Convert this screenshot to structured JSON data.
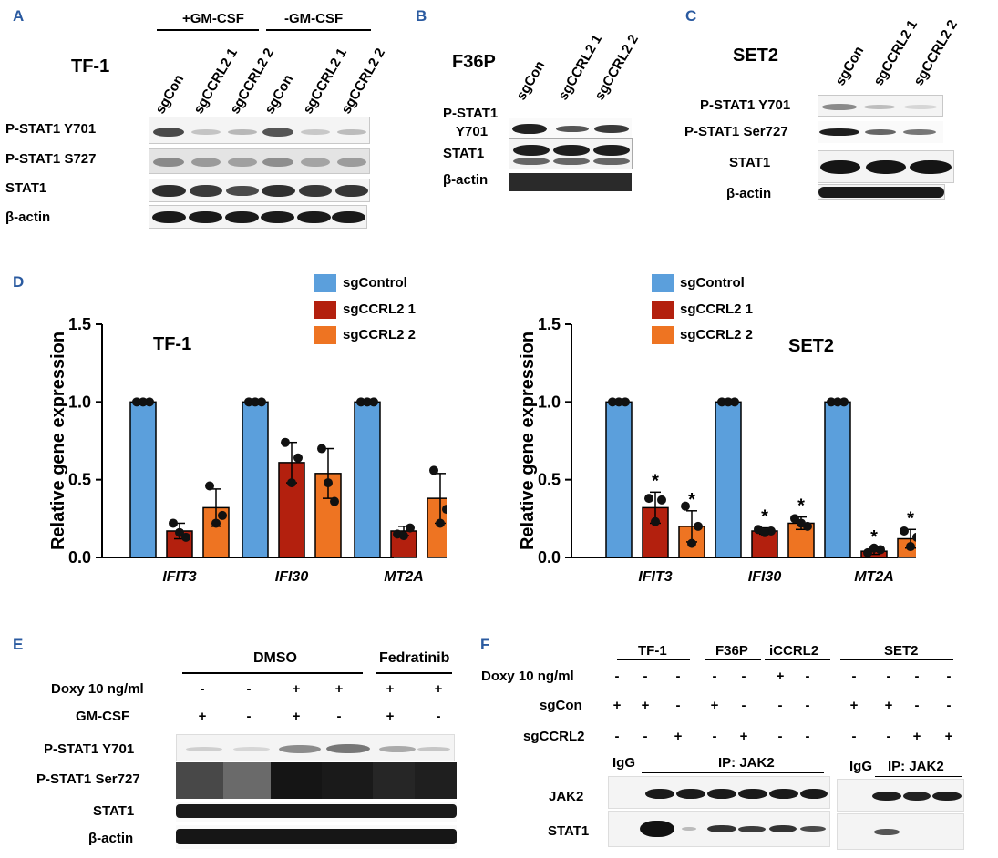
{
  "panelA": {
    "letter": "A",
    "cell_line": "TF-1",
    "cond_plus": "+GM-CSF",
    "cond_minus": "-GM-CSF",
    "lanes": [
      "sgCon",
      "sgCCRL2 1",
      "sgCCRL2 2",
      "sgCon",
      "sgCCRL2 1",
      "sgCCRL2 2"
    ],
    "rows": [
      "P-STAT1 Y701",
      "P-STAT1 S727",
      "STAT1",
      "β-actin"
    ]
  },
  "panelB": {
    "letter": "B",
    "cell_line": "F36P",
    "lanes": [
      "sgCon",
      "sgCCRL2 1",
      "sgCCRL2 2"
    ],
    "row_pstat_line1": "P-STAT1",
    "row_pstat_line2": "Y701",
    "row_stat1": "STAT1",
    "row_actin": "β-actin"
  },
  "panelC": {
    "letter": "C",
    "cell_line": "SET2",
    "lanes": [
      "sgCon",
      "sgCCRL2 1",
      "sgCCRL2 2"
    ],
    "rows": [
      "P-STAT1 Y701",
      "P-STAT1 Ser727",
      "STAT1",
      "β-actin"
    ]
  },
  "panelD": {
    "letter": "D",
    "legend": [
      "sgControl",
      "sgCCRL2 1",
      "sgCCRL2 2"
    ]
  },
  "colors": {
    "sgControl": "#5b9fdc",
    "sgCCRL2_1": "#b3200e",
    "sgCCRL2_2": "#ee7422",
    "panel_letter": "#2a5aa0"
  },
  "chart_data": [
    {
      "type": "bar",
      "title": "TF-1",
      "ylabel": "Relative gene expression",
      "ylim": [
        0,
        1.5
      ],
      "yticks": [
        "0.0",
        "0.5",
        "1.0",
        "1.5"
      ],
      "categories": [
        "IFIT3",
        "IFI30",
        "MT2A"
      ],
      "series": [
        {
          "name": "sgControl",
          "values": [
            1.0,
            1.0,
            1.0
          ],
          "err": [
            0,
            0,
            0
          ],
          "points": [
            [
              1.0,
              1.0,
              1.0
            ],
            [
              1.0,
              1.0,
              1.0
            ],
            [
              1.0,
              1.0,
              1.0
            ]
          ],
          "sig": [
            false,
            false,
            false
          ]
        },
        {
          "name": "sgCCRL2 1",
          "values": [
            0.17,
            0.61,
            0.17
          ],
          "err": [
            0.05,
            0.13,
            0.03
          ],
          "points": [
            [
              0.22,
              0.13,
              0.16
            ],
            [
              0.74,
              0.64,
              0.48
            ],
            [
              0.15,
              0.19,
              0.14
            ]
          ],
          "sig": [
            false,
            false,
            false
          ]
        },
        {
          "name": "sgCCRL2 2",
          "values": [
            0.32,
            0.54,
            0.38
          ],
          "err": [
            0.12,
            0.16,
            0.16
          ],
          "points": [
            [
              0.46,
              0.27,
              0.22
            ],
            [
              0.7,
              0.36,
              0.48
            ],
            [
              0.56,
              0.31,
              0.22
            ]
          ],
          "sig": [
            false,
            false,
            false
          ]
        }
      ]
    },
    {
      "type": "bar",
      "title": "SET2",
      "ylabel": "Relative gene expression",
      "ylim": [
        0,
        1.5
      ],
      "yticks": [
        "0.0",
        "0.5",
        "1.0",
        "1.5"
      ],
      "categories": [
        "IFIT3",
        "IFI30",
        "MT2A"
      ],
      "series": [
        {
          "name": "sgControl",
          "values": [
            1.0,
            1.0,
            1.0
          ],
          "err": [
            0,
            0,
            0
          ],
          "points": [
            [
              1.0,
              1.0,
              1.0
            ],
            [
              1.0,
              1.0,
              1.0
            ],
            [
              1.0,
              1.0,
              1.0
            ]
          ],
          "sig": [
            false,
            false,
            false
          ]
        },
        {
          "name": "sgCCRL2 1",
          "values": [
            0.32,
            0.17,
            0.04
          ],
          "err": [
            0.1,
            0.02,
            0.02
          ],
          "points": [
            [
              0.38,
              0.37,
              0.23
            ],
            [
              0.18,
              0.17,
              0.16
            ],
            [
              0.03,
              0.05,
              0.06
            ]
          ],
          "sig": [
            true,
            true,
            true
          ]
        },
        {
          "name": "sgCCRL2 2",
          "values": [
            0.2,
            0.22,
            0.12
          ],
          "err": [
            0.1,
            0.04,
            0.06
          ],
          "points": [
            [
              0.33,
              0.2,
              0.09
            ],
            [
              0.25,
              0.2,
              0.22
            ],
            [
              0.17,
              0.13,
              0.07
            ]
          ],
          "sig": [
            true,
            true,
            true
          ]
        }
      ]
    }
  ],
  "panelE": {
    "letter": "E",
    "cond_dmso": "DMSO",
    "cond_fed": "Fedratinib",
    "doxy_label": "Doxy 10 ng/ml",
    "gm_label": "GM-CSF",
    "doxy_signs": [
      "-",
      "-",
      "+",
      "+",
      "+",
      "+"
    ],
    "gm_signs": [
      "+",
      "-",
      "+",
      "-",
      "+",
      "-"
    ],
    "rows": [
      "P-STAT1 Y701",
      "P-STAT1 Ser727",
      "STAT1",
      "β-actin"
    ]
  },
  "panelF": {
    "letter": "F",
    "groups": [
      "TF-1",
      "F36P",
      "iCCRL2",
      "SET2"
    ],
    "doxy_label": "Doxy 10 ng/ml",
    "sgcon_label": "sgCon",
    "sgccrl2_label": "sgCCRL2",
    "doxy_signs": [
      "-",
      "-",
      "-",
      "-",
      "-",
      "+",
      "-",
      "-",
      "-",
      "-",
      "-"
    ],
    "sgcon_signs": [
      "+",
      "+",
      "-",
      "+",
      "-",
      "-",
      "-",
      "+",
      "+",
      "-",
      "-"
    ],
    "sgccrl2_signs": [
      "-",
      "-",
      "+",
      "-",
      "+",
      "-",
      "-",
      "-",
      "-",
      "+",
      "+"
    ],
    "igg": "IgG",
    "ip_left": "IP: JAK2",
    "ip_right": "IP: JAK2",
    "rows": [
      "JAK2",
      "STAT1"
    ]
  },
  "star": "*"
}
